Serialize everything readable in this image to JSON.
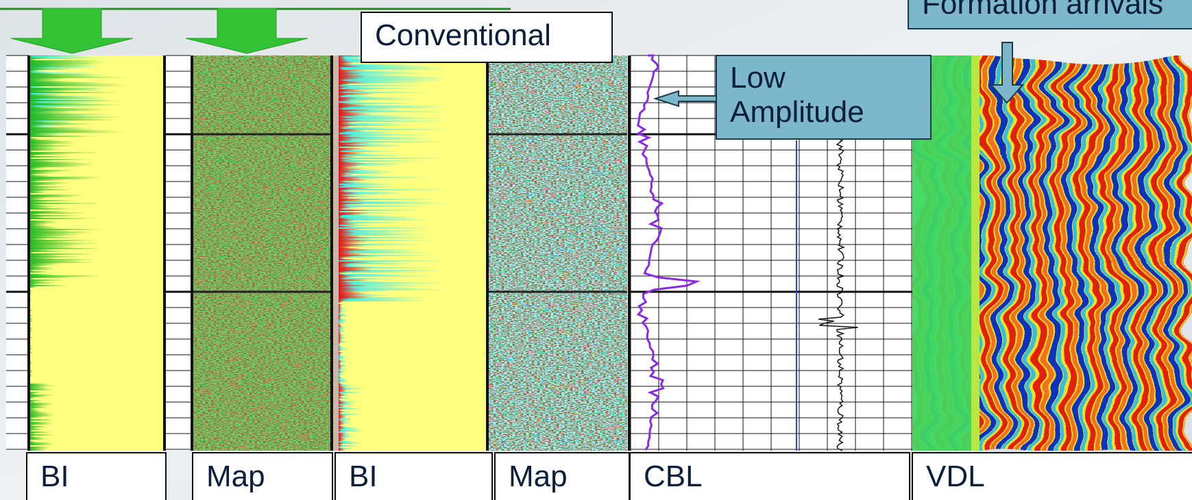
{
  "callouts": {
    "conventional": "Conventional",
    "low_amplitude": [
      "Low",
      "Amplitude"
    ],
    "formation": "Formation arrivals"
  },
  "tracks": [
    "BI",
    "Map",
    "BI",
    "Map",
    "CBL",
    "VDL"
  ]
}
